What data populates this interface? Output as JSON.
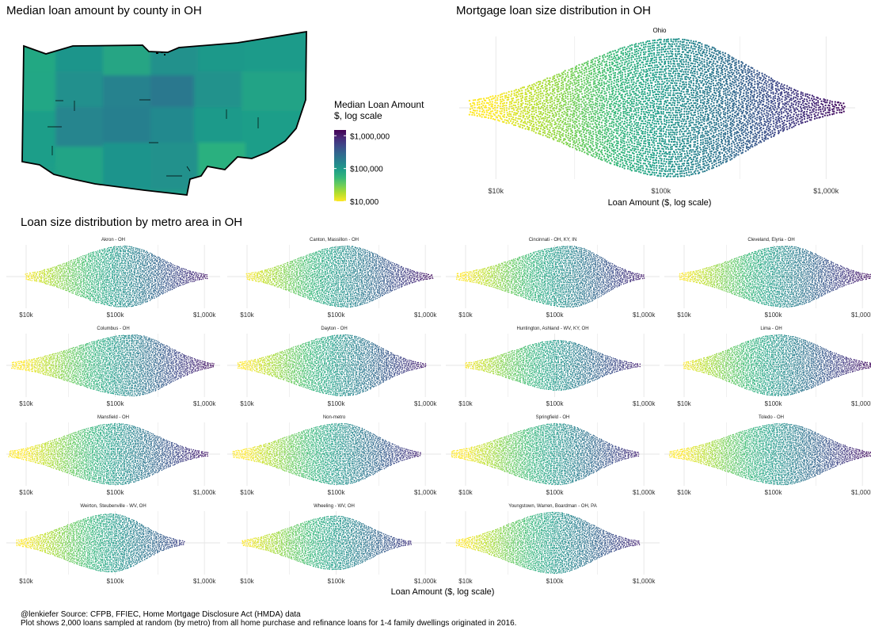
{
  "titles": {
    "map": "Median loan amount by county in OH",
    "ohio": "Mortgage loan size distribution in OH",
    "metro": "Loan size distribution by metro area in OH"
  },
  "legend": {
    "title_line1": "Median Loan Amount",
    "title_line2": "$, log scale",
    "ticks": [
      "$1,000,000",
      "$100,000",
      "$10,000"
    ],
    "tick_values": [
      1000000,
      100000,
      10000
    ],
    "range": [
      10000,
      1500000
    ]
  },
  "colors": {
    "viridis": [
      "#fde725",
      "#b5de2b",
      "#6ece58",
      "#35b779",
      "#1f9e89",
      "#26828e",
      "#31688e",
      "#3e4989",
      "#482878",
      "#440154"
    ],
    "grid": "#e6e6e6",
    "state_outline": "#000000"
  },
  "footer": {
    "line1": "@lenkiefer Source: CFPB, FFIEC, Home Mortgage Disclosure Act (HMDA) data",
    "line2": "Plot shows 2,000 loans sampled at random (by metro) from all home purchase and refinance loans for 1-4 family dwellings originated in 2016."
  },
  "chart_data": [
    {
      "type": "choropleth",
      "title": "Median loan amount by county in OH",
      "legend_title": "Median Loan Amount $, log scale",
      "legend_ticks": [
        "$1,000,000",
        "$100,000",
        "$10,000"
      ],
      "scale": "log",
      "value_range": [
        10000,
        1500000
      ]
    },
    {
      "type": "beeswarm",
      "title": "Mortgage loan size distribution in OH",
      "facet": "Ohio",
      "xlabel": "Loan Amount ($, log scale)",
      "x_ticks": [
        "$10k",
        "$100k",
        "$1,000k"
      ],
      "x_tick_values": [
        10000,
        100000,
        1000000
      ],
      "xlim": [
        6000,
        1500000
      ],
      "x_scale": "log",
      "median": 120000,
      "range": [
        7000,
        1300000
      ],
      "max_height": 1.0
    },
    {
      "type": "beeswarm",
      "title": "Loan size distribution by metro area in OH",
      "xlabel": "Loan Amount ($, log scale)",
      "x_ticks": [
        "$10k",
        "$100k",
        "$1,000k"
      ],
      "x_tick_values": [
        10000,
        100000,
        1000000
      ],
      "xlim": [
        6000,
        1500000
      ],
      "x_scale": "log",
      "facets": [
        {
          "name": "Akron - OH",
          "median": 125000,
          "range": [
            10000,
            1100000
          ],
          "height": 1.0
        },
        {
          "name": "Canton, Massillon - OH",
          "median": 130000,
          "range": [
            10000,
            1200000
          ],
          "height": 1.0
        },
        {
          "name": "Cincinnati - OH, KY, IN",
          "median": 150000,
          "range": [
            8000,
            1000000
          ],
          "height": 1.0
        },
        {
          "name": "Cleveland, Elyria - OH",
          "median": 140000,
          "range": [
            9000,
            1300000
          ],
          "height": 1.0
        },
        {
          "name": "Columbus - OH",
          "median": 160000,
          "range": [
            7000,
            1300000
          ],
          "height": 1.0
        },
        {
          "name": "Dayton - OH",
          "median": 125000,
          "range": [
            8000,
            1000000
          ],
          "height": 1.0
        },
        {
          "name": "Huntington, Ashland - WV, KY, OH",
          "median": 110000,
          "range": [
            10000,
            900000
          ],
          "height": 0.82
        },
        {
          "name": "Lima - OH",
          "median": 115000,
          "range": [
            10000,
            1400000
          ],
          "height": 1.0
        },
        {
          "name": "Mansfield - OH",
          "median": 105000,
          "range": [
            6500,
            1100000
          ],
          "height": 1.0
        },
        {
          "name": "Non-metro",
          "median": 115000,
          "range": [
            7000,
            900000
          ],
          "height": 1.0
        },
        {
          "name": "Springfield - OH",
          "median": 110000,
          "range": [
            7000,
            900000
          ],
          "height": 1.0
        },
        {
          "name": "Toledo - OH",
          "median": 130000,
          "range": [
            7000,
            1300000
          ],
          "height": 1.0
        },
        {
          "name": "Weirton, Steubenville - WV, OH",
          "median": 90000,
          "range": [
            8000,
            600000
          ],
          "height": 0.95
        },
        {
          "name": "Wheeling - WV, OH",
          "median": 100000,
          "range": [
            9000,
            700000
          ],
          "height": 0.88
        },
        {
          "name": "Youngstown, Warren, Boardman - OH, PA",
          "median": 100000,
          "range": [
            8000,
            900000
          ],
          "height": 1.0
        }
      ]
    }
  ]
}
